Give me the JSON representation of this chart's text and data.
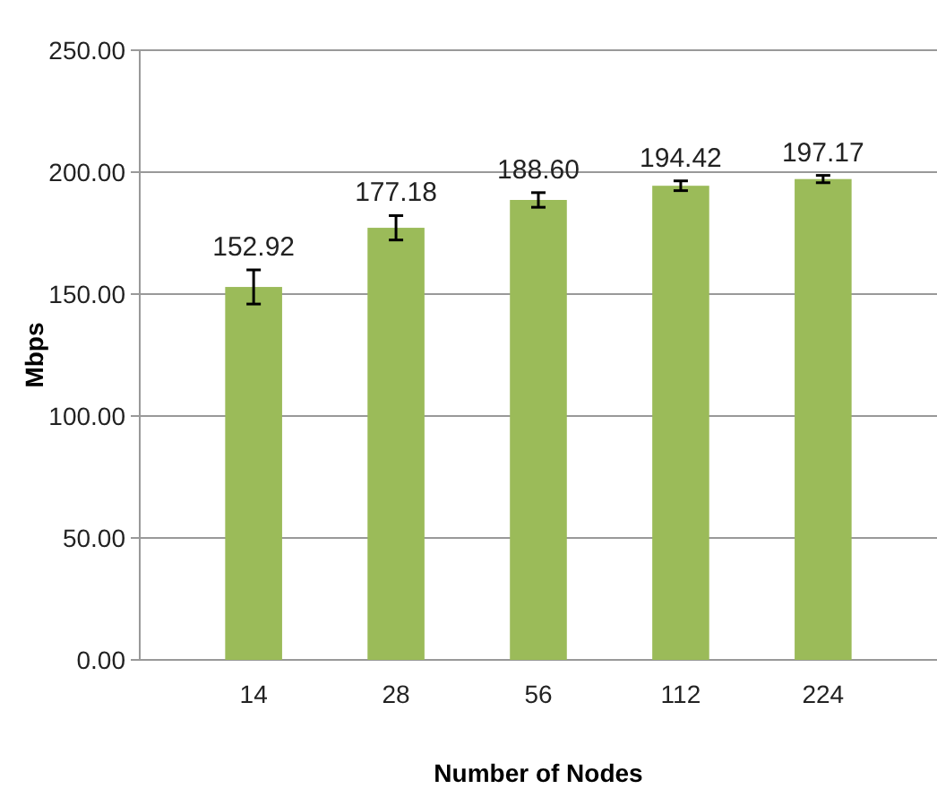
{
  "chart_data": {
    "type": "bar",
    "xlabel": "Number of Nodes",
    "ylabel": "Mbps",
    "categories": [
      "14",
      "28",
      "56",
      "112",
      "224"
    ],
    "values": [
      152.92,
      177.18,
      188.6,
      194.42,
      197.17
    ],
    "color": "#9bbb59",
    "errors": [
      7,
      5,
      3,
      2,
      1.5
    ],
    "value_labels": [
      "152.92",
      "177.18",
      "188.60",
      "194.42",
      "197.17"
    ],
    "ylim": [
      0,
      250
    ],
    "yticks": [
      {
        "value": 0,
        "label": "0.00"
      },
      {
        "value": 50,
        "label": "50.00"
      },
      {
        "value": 100,
        "label": "100.00"
      },
      {
        "value": 150,
        "label": "150.00"
      },
      {
        "value": 200,
        "label": "200.00"
      },
      {
        "value": 250,
        "label": "250.00"
      }
    ],
    "grid": "y"
  }
}
